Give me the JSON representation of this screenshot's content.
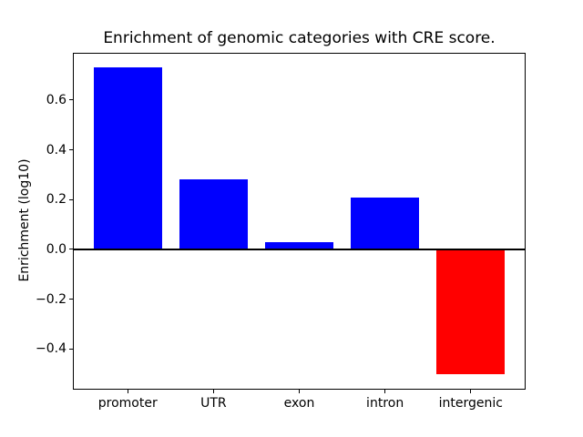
{
  "figure": {
    "background": "#ffffff"
  },
  "chart_data": {
    "type": "bar",
    "title": "Enrichment of genomic categories with CRE score.",
    "xlabel": "",
    "ylabel": "Enrichment (log10)",
    "categories": [
      "promoter",
      "UTR",
      "exon",
      "intron",
      "intergenic"
    ],
    "values": [
      0.73,
      0.28,
      0.03,
      0.21,
      -0.5
    ],
    "bar_colors": [
      "#0000ff",
      "#0000ff",
      "#0000ff",
      "#0000ff",
      "#ff0000"
    ],
    "positive_color": "#0000ff",
    "negative_color": "#ff0000",
    "yticks": [
      0.6,
      0.4,
      0.2,
      0.0,
      -0.2,
      -0.4
    ],
    "ytick_labels": [
      "0.6",
      "0.4",
      "0.2",
      "0.0",
      "−0.2",
      "−0.4"
    ],
    "ylim": [
      -0.5615,
      0.7915
    ],
    "xlim": [
      -0.64,
      4.64
    ],
    "bar_width_fraction": 0.8,
    "zero_line": true,
    "grid": false,
    "legend_position": "none",
    "axis_color": "#000000"
  }
}
